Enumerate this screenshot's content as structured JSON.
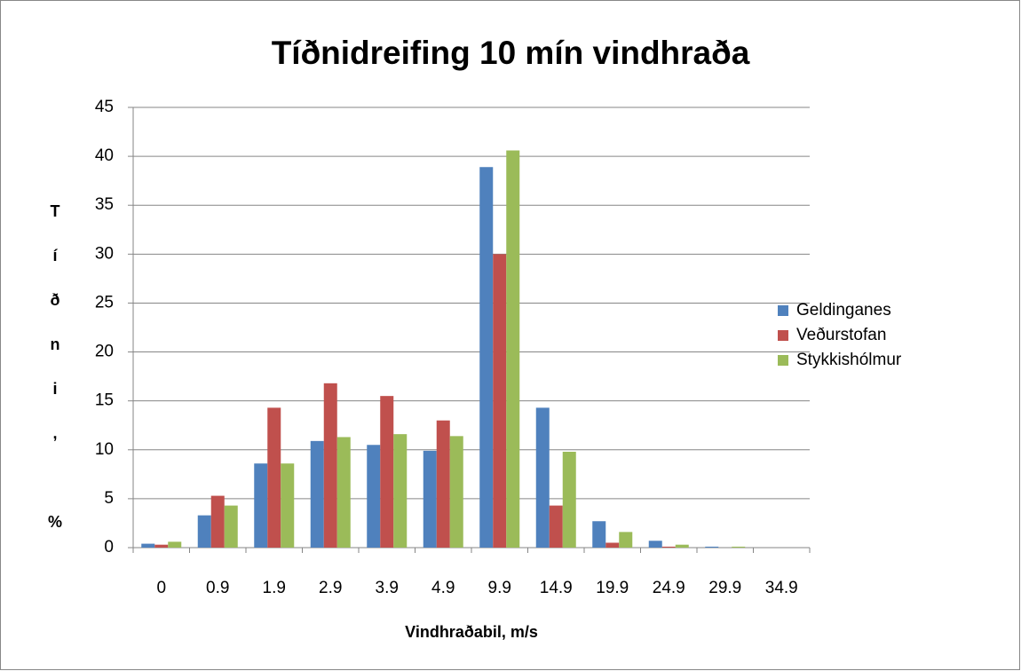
{
  "chart_data": {
    "type": "bar",
    "title": "Tíðnidreifing 10 mín vindhraða",
    "x_label": "Vindhraðabil, m/s",
    "y_label": "Tíðni, %",
    "categories": [
      "0",
      "0.9",
      "1.9",
      "2.9",
      "3.9",
      "4.9",
      "9.9",
      "14.9",
      "19.9",
      "24.9",
      "29.9",
      "34.9"
    ],
    "series": [
      {
        "name": "Geldinganes",
        "color": "#4f81bd",
        "values": [
          0.4,
          3.3,
          8.6,
          10.9,
          10.5,
          9.9,
          38.9,
          14.3,
          2.7,
          0.7,
          0.1,
          0
        ]
      },
      {
        "name": "Veðurstofan",
        "color": "#c0504d",
        "values": [
          0.3,
          5.3,
          14.3,
          16.8,
          15.5,
          13.0,
          30.0,
          4.3,
          0.5,
          0.1,
          0,
          0
        ]
      },
      {
        "name": "Stykkishólmur",
        "color": "#9bbb59",
        "values": [
          0.6,
          4.3,
          8.6,
          11.3,
          11.6,
          11.4,
          40.6,
          9.8,
          1.6,
          0.3,
          0.1,
          0
        ]
      }
    ],
    "ylim": [
      0,
      45
    ],
    "yticks": [
      0,
      5,
      10,
      15,
      20,
      25,
      30,
      35,
      40,
      45
    ],
    "grid": true,
    "legend": "right"
  }
}
